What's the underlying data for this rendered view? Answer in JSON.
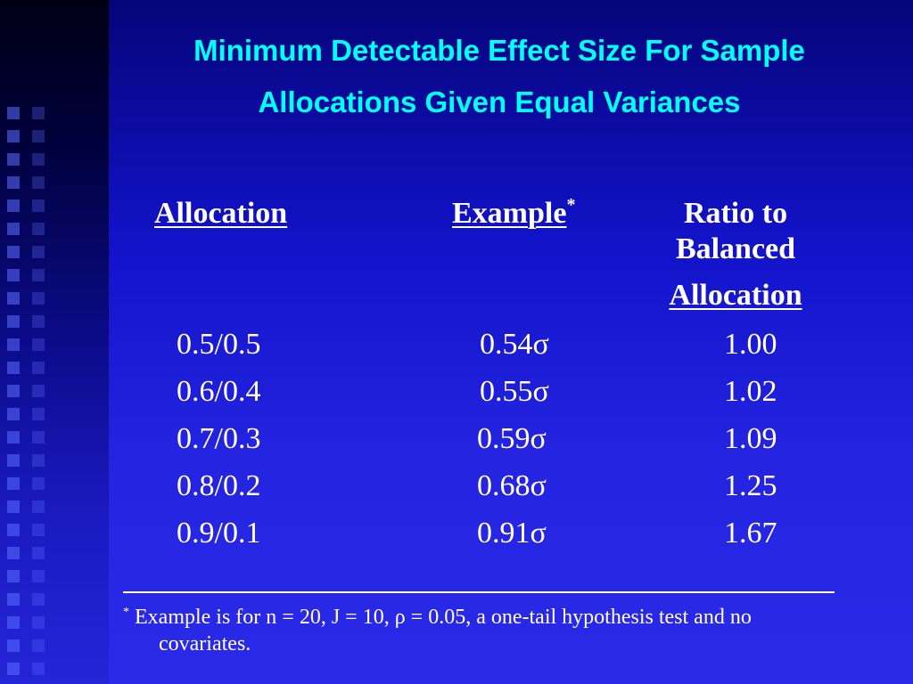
{
  "title": {
    "line1": "Minimum Detectable Effect Size For Sample",
    "line2": "Allocations Given Equal Variances"
  },
  "table": {
    "headers": {
      "allocation": "Allocation",
      "example": "Example",
      "example_marker": "*",
      "ratio_line1": "Ratio to",
      "ratio_line2": "Balanced",
      "ratio_line3": "Allocation"
    },
    "rows": [
      {
        "allocation": "0.5/0.5",
        "example": "0.54σ",
        "ratio": "1.00"
      },
      {
        "allocation": "0.6/0.4",
        "example": "0.55σ",
        "ratio": "1.02"
      },
      {
        "allocation": "0.7/0.3",
        "example": "0.59σ",
        "ratio": "1.09"
      },
      {
        "allocation": "0.8/0.2",
        "example": "0.68σ",
        "ratio": "1.25"
      },
      {
        "allocation": "0.9/0.1",
        "example": "0.91σ",
        "ratio": "1.67"
      }
    ]
  },
  "footnote": {
    "marker": "*",
    "line1": " Example is for n = 20, J = 10, ρ = 0.05, a one-tail hypothesis test and no",
    "line2": "covariates."
  },
  "colors": {
    "title": "#00ffff",
    "text": "#ffffff",
    "background": "#2323e0"
  }
}
